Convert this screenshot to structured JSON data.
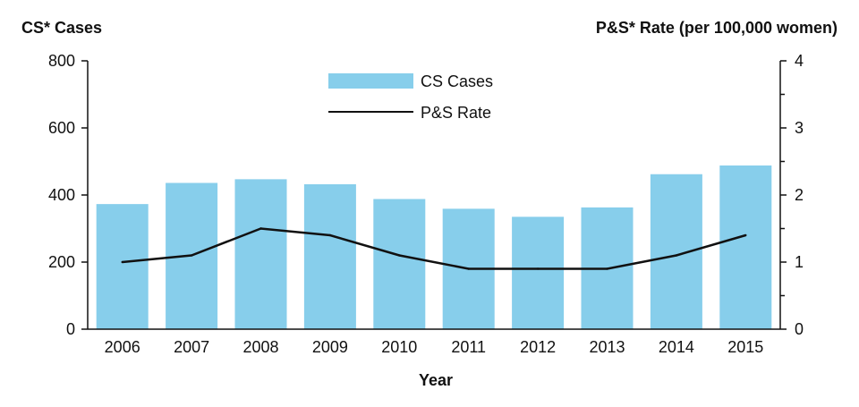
{
  "chart_data": {
    "type": "bar",
    "categories": [
      "2006",
      "2007",
      "2008",
      "2009",
      "2010",
      "2011",
      "2012",
      "2013",
      "2014",
      "2015"
    ],
    "series": [
      {
        "name": "CS Cases",
        "type": "bar",
        "axis": "left",
        "color": "#87CEEB",
        "values": [
          373,
          436,
          447,
          432,
          388,
          359,
          335,
          363,
          462,
          488
        ]
      },
      {
        "name": "P&S Rate",
        "type": "line",
        "axis": "right",
        "color": "#111111",
        "values": [
          1.0,
          1.1,
          1.5,
          1.4,
          1.1,
          0.9,
          0.9,
          0.9,
          1.1,
          1.4
        ]
      }
    ],
    "ylabel": "CS* Cases",
    "y2label": "P&S* Rate (per 100,000 women)",
    "xlabel": "Year",
    "ylim": [
      0,
      800
    ],
    "yticks": [
      "0",
      "200",
      "400",
      "600",
      "800"
    ],
    "y2lim": [
      0,
      4
    ],
    "y2ticks": [
      "0",
      "1",
      "2",
      "3",
      "4"
    ],
    "legend": "top-center",
    "grid": false
  }
}
